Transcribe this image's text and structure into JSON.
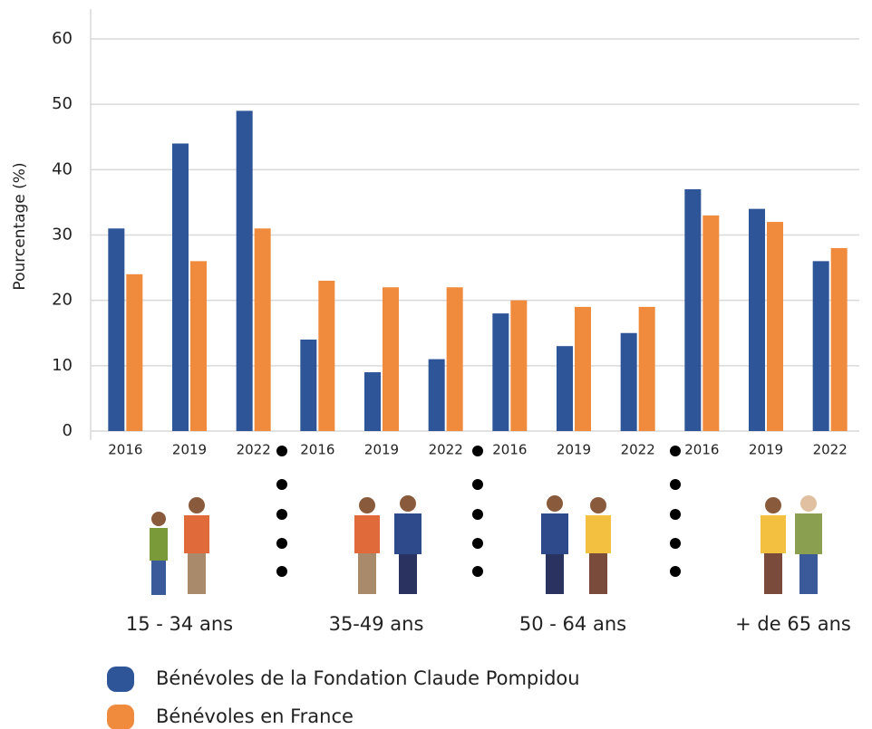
{
  "chart_data": {
    "type": "bar",
    "ylabel": "Pourcentage (%)",
    "categories": [
      "2016",
      "2019",
      "2022",
      "2016",
      "2019",
      "2022",
      "2016",
      "2019",
      "2022",
      "2016",
      "2019",
      "2022"
    ],
    "group_labels": [
      "15 - 34 ans",
      "35-49 ans",
      "50 - 64 ans",
      "+ de 65 ans"
    ],
    "series": [
      {
        "name": "Bénévoles de la Fondation Claude Pompidou",
        "color": "#2e5597",
        "values": [
          31,
          44,
          49,
          14,
          9,
          11,
          18,
          13,
          15,
          37,
          34,
          26
        ]
      },
      {
        "name": "Bénévoles en France",
        "color": "#f08a3c",
        "values": [
          24,
          26,
          31,
          23,
          22,
          22,
          20,
          19,
          19,
          33,
          32,
          28
        ]
      }
    ],
    "ylim": [
      0,
      60
    ],
    "yticks": [
      0,
      10,
      20,
      30,
      40,
      50,
      60
    ],
    "grid": true
  }
}
